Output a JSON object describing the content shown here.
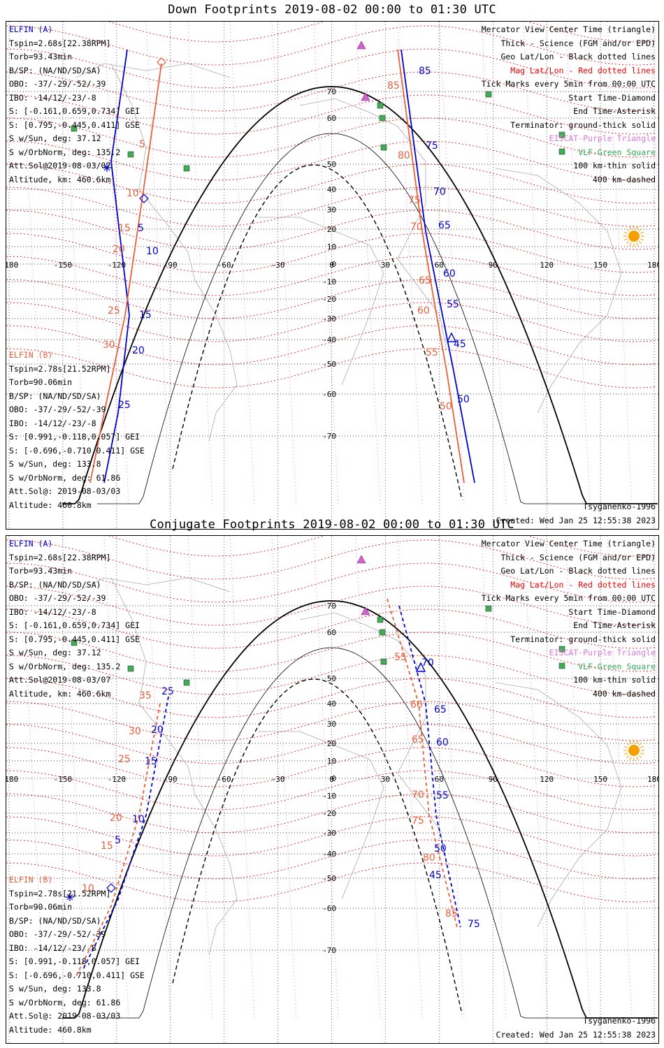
{
  "panels": [
    {
      "title": "Down Footprints 2019-08-02 00:00 to 01:30 UTC",
      "elfin_a": {
        "name": "ELFIN (A)",
        "lines": [
          "Tspin=2.68s[22.38RPM]",
          "Torb=93.43min",
          "B/SP: (NA/ND/SD/SA)",
          "OBO: -37/-29/-52/-39",
          "IBO: -14/12/-23/-8",
          "S: [-0.161,0.659,0.734] GEI",
          "S: [0.795,-0.445,0.411] GSE",
          "S w/Sun, deg: 37.12",
          "S w/OrbNorm, deg: 135.2",
          "Att.Sol@2019-08-03/07",
          "Altitude, km: 460.6km"
        ]
      },
      "elfin_b": {
        "name": "ELFIN (B)",
        "lines": [
          "Tspin=2.78s[21.52RPM]",
          "Torb=90.06min",
          "B/SP: (NA/ND/SD/SA)",
          "OBO: -37/-29/-52/-39",
          "IBO: -14/12/-23/-8",
          "S: [0.991,-0.118,0.057] GEI",
          "S: [-0.696,-0.710,0.411] GSE",
          "S w/Sun, deg: 133.8",
          "S w/OrbNorm, deg: 61.86",
          "Att.Sol@: 2019-08-03/03",
          "Altitude: 460.8km"
        ]
      },
      "model": "Tsyganenko-1996",
      "created": "Created: Wed Jan 25 12:55:38 2023"
    },
    {
      "title": "Conjugate Footprints 2019-08-02 00:00 to 01:30 UTC",
      "elfin_a": {
        "name": "ELFIN (A)",
        "lines": [
          "Tspin=2.68s[22.38RPM]",
          "Torb=93.43min",
          "B/SP: (NA/ND/SD/SA)",
          "OBO: -37/-29/-52/-39",
          "IBO: -14/12/-23/-8",
          "S: [-0.161,0.659,0.734] GEI",
          "S: [0.795,-0.445,0.411] GSE",
          "S w/Sun, deg: 37.12",
          "S w/OrbNorm, deg: 135.2",
          "Att.Sol@2019-08-03/07",
          "Altitude, km: 460.6km"
        ]
      },
      "elfin_b": {
        "name": "ELFIN (B)",
        "lines": [
          "Tspin=2.78s[21.52RPM]",
          "Torb=90.06min",
          "B/SP: (NA/ND/SD/SA)",
          "OBO: -37/-29/-52/-39",
          "IBO: -14/12/-23/-8",
          "S: [0.991,-0.118,0.057] GEI",
          "S: [-0.696,-0.710,0.411] GSE",
          "S w/Sun, deg: 133.8",
          "S w/OrbNorm, deg: 61.86",
          "Att.Sol@: 2019-08-03/03",
          "Altitude: 460.8km"
        ]
      },
      "model": "Tsyganenko-1996",
      "created": "Created: Wed Jan 25 12:55:38 2023"
    }
  ],
  "legend": {
    "l1": "Mercator View Center Time (triangle)",
    "l2": "Thick - Science (FGM and/or EPD)",
    "l3": "Geo Lat/Lon - Black dotted lines",
    "l4": "Mag Lat/Lon - Red dotted lines",
    "l5": "Tick Marks every 5min from 00:00 UTC",
    "l6": "Start Time-Diamond",
    "l7": "End Time-Asterisk",
    "l8": "Terminator: ground-thick solid",
    "l9": "EISCAT-Purple Triangle",
    "l10": "VLF-Green Square",
    "l11": "100 km-thin solid",
    "l12": "400 km-dashed"
  },
  "lon_labels": [
    "-180",
    "-150",
    "-120",
    "-90",
    "-60",
    "-30",
    "0",
    "30",
    "60",
    "90",
    "120",
    "150",
    "180"
  ],
  "lat_labels": [
    "70",
    "60",
    "50",
    "40",
    "30",
    "20",
    "10",
    "0",
    "-10",
    "-20",
    "-30",
    "-40",
    "-50",
    "-60",
    "-70"
  ],
  "colors": {
    "elfin_a": "#0000cc",
    "elfin_b": "#e8603c",
    "mag_grid": "#dd0000",
    "eiscat": "#cc66cc",
    "vlf": "#44aa55",
    "sun": "#f5a000"
  },
  "chart_data": [
    {
      "type": "map",
      "title": "Down Footprints 2019-08-02 00:00 to 01:30 UTC",
      "elfin_a_ticks_min": [
        "5",
        "10",
        "15",
        "20",
        "25",
        "45",
        "50",
        "55",
        "60",
        "65",
        "70",
        "75",
        "85"
      ],
      "elfin_b_ticks_min": [
        "5",
        "10",
        "15",
        "20",
        "25",
        "30",
        "50",
        "55",
        "60",
        "65",
        "70",
        "75",
        "80",
        "85"
      ]
    },
    {
      "type": "map",
      "title": "Conjugate Footprints 2019-08-02 00:00 to 01:30 UTC",
      "elfin_a_ticks_min": [
        "5",
        "10",
        "15",
        "20",
        "25",
        "45",
        "50",
        "55",
        "60",
        "65",
        "70",
        "75"
      ],
      "elfin_b_ticks_min": [
        "10",
        "15",
        "20",
        "25",
        "30",
        "35",
        "55",
        "60",
        "65",
        "70",
        "75",
        "80",
        "85"
      ]
    }
  ]
}
